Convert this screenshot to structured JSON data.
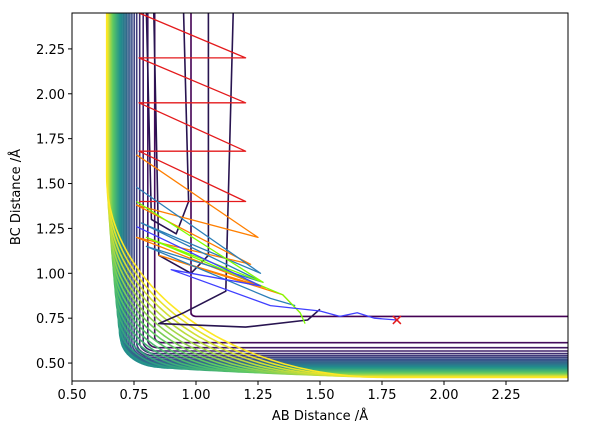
{
  "chart_data": {
    "type": "contour",
    "xlabel": "AB Distance /Å",
    "ylabel": "BC Distance /Å",
    "xlim": [
      0.5,
      2.5
    ],
    "ylim": [
      0.4,
      2.45
    ],
    "xticks": [
      "0.50",
      "0.75",
      "1.00",
      "1.25",
      "1.50",
      "1.75",
      "2.00",
      "2.25"
    ],
    "yticks": [
      "0.50",
      "0.75",
      "1.00",
      "1.25",
      "1.50",
      "1.75",
      "2.00",
      "2.25"
    ],
    "xtick_values": [
      0.5,
      0.75,
      1.0,
      1.25,
      1.5,
      1.75,
      2.0,
      2.25
    ],
    "ytick_values": [
      0.5,
      0.75,
      1.0,
      1.25,
      1.5,
      1.75,
      2.0,
      2.25
    ],
    "grid": false,
    "colormap": "viridis",
    "contour_levels": 30,
    "end_marker": {
      "x": 1.81,
      "y": 0.74,
      "color": "#e41a1c",
      "shape": "x"
    },
    "trajectories": [
      {
        "color": "#e41a1c",
        "points": [
          [
            0.77,
            2.45
          ],
          [
            1.2,
            2.2
          ],
          [
            0.77,
            2.2
          ],
          [
            1.2,
            1.95
          ],
          [
            0.77,
            1.95
          ],
          [
            1.2,
            1.68
          ],
          [
            0.77,
            1.68
          ],
          [
            1.2,
            1.4
          ],
          [
            0.77,
            1.4
          ]
        ]
      },
      {
        "color": "#ff7f00",
        "points": [
          [
            0.76,
            1.66
          ],
          [
            1.25,
            1.2
          ],
          [
            0.76,
            1.38
          ],
          [
            1.22,
            1.05
          ],
          [
            0.76,
            1.2
          ],
          [
            1.28,
            0.92
          ],
          [
            0.85,
            1.1
          ],
          [
            1.35,
            0.88
          ],
          [
            1.42,
            0.78
          ]
        ]
      },
      {
        "color": "#2c7fb8",
        "points": [
          [
            0.76,
            1.48
          ],
          [
            1.26,
            1.0
          ],
          [
            0.78,
            1.28
          ],
          [
            1.27,
            0.95
          ],
          [
            0.8,
            1.15
          ],
          [
            1.3,
            0.86
          ],
          [
            1.4,
            0.82
          ]
        ]
      },
      {
        "color": "#7fff00",
        "points": [
          [
            0.76,
            1.4
          ],
          [
            1.27,
            0.95
          ],
          [
            0.8,
            1.2
          ],
          [
            1.35,
            0.88
          ],
          [
            1.42,
            0.78
          ],
          [
            1.44,
            0.72
          ]
        ]
      },
      {
        "color": "#3f3fff",
        "points": [
          [
            0.76,
            1.26
          ],
          [
            1.26,
            0.93
          ],
          [
            0.9,
            1.02
          ],
          [
            1.3,
            0.82
          ],
          [
            1.5,
            0.79
          ],
          [
            1.58,
            0.76
          ],
          [
            1.65,
            0.78
          ],
          [
            1.72,
            0.75
          ],
          [
            1.81,
            0.74
          ]
        ]
      }
    ]
  }
}
